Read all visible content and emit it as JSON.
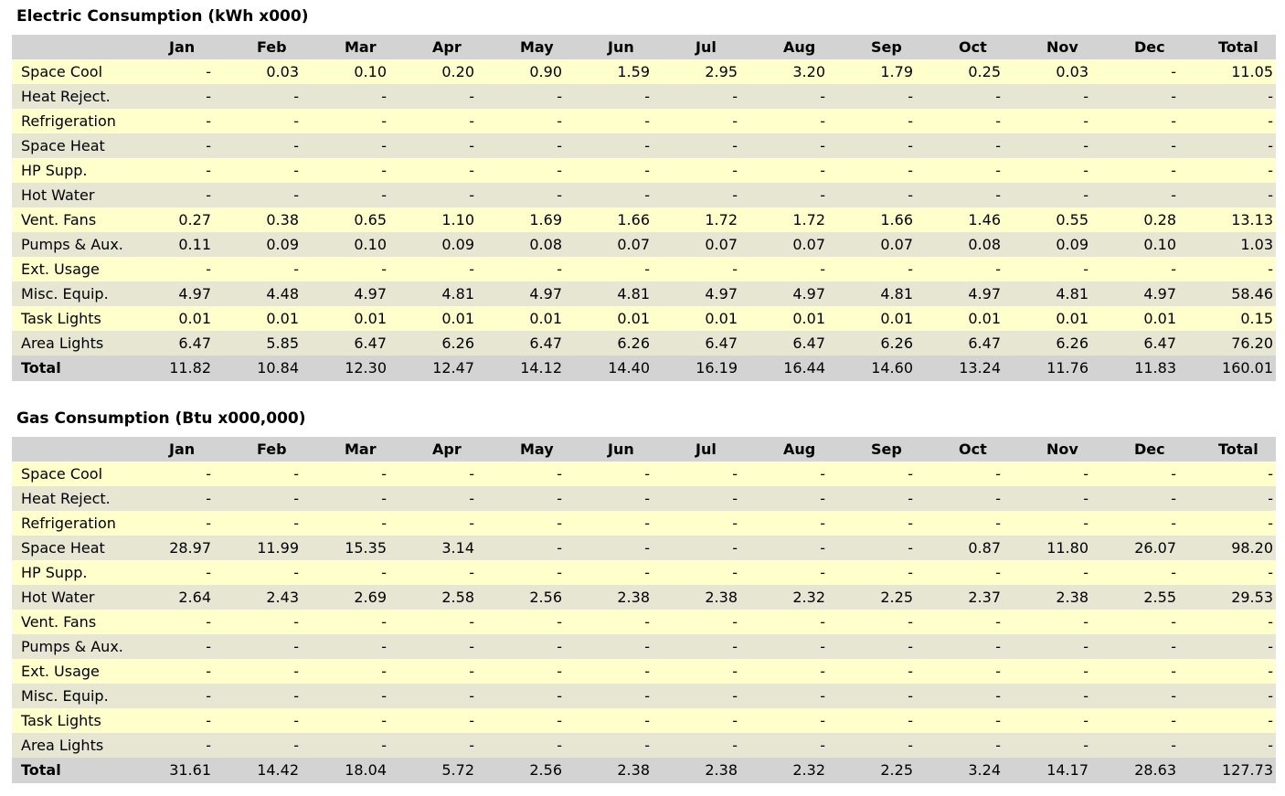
{
  "months": [
    "Jan",
    "Feb",
    "Mar",
    "Apr",
    "May",
    "Jun",
    "Jul",
    "Aug",
    "Sep",
    "Oct",
    "Nov",
    "Dec",
    "Total"
  ],
  "row_labels": [
    "Space Cool",
    "Heat Reject.",
    "Refrigeration",
    "Space Heat",
    "HP Supp.",
    "Hot Water",
    "Vent. Fans",
    "Pumps & Aux.",
    "Ext. Usage",
    "Misc. Equip.",
    "Task Lights",
    "Area Lights"
  ],
  "total_label": "Total",
  "electric": {
    "title": "Electric Consumption (kWh x000)",
    "rows": [
      [
        "-",
        "0.03",
        "0.10",
        "0.20",
        "0.90",
        "1.59",
        "2.95",
        "3.20",
        "1.79",
        "0.25",
        "0.03",
        "-",
        "11.05"
      ],
      [
        "-",
        "-",
        "-",
        "-",
        "-",
        "-",
        "-",
        "-",
        "-",
        "-",
        "-",
        "-",
        "-"
      ],
      [
        "-",
        "-",
        "-",
        "-",
        "-",
        "-",
        "-",
        "-",
        "-",
        "-",
        "-",
        "-",
        "-"
      ],
      [
        "-",
        "-",
        "-",
        "-",
        "-",
        "-",
        "-",
        "-",
        "-",
        "-",
        "-",
        "-",
        "-"
      ],
      [
        "-",
        "-",
        "-",
        "-",
        "-",
        "-",
        "-",
        "-",
        "-",
        "-",
        "-",
        "-",
        "-"
      ],
      [
        "-",
        "-",
        "-",
        "-",
        "-",
        "-",
        "-",
        "-",
        "-",
        "-",
        "-",
        "-",
        "-"
      ],
      [
        "0.27",
        "0.38",
        "0.65",
        "1.10",
        "1.69",
        "1.66",
        "1.72",
        "1.72",
        "1.66",
        "1.46",
        "0.55",
        "0.28",
        "13.13"
      ],
      [
        "0.11",
        "0.09",
        "0.10",
        "0.09",
        "0.08",
        "0.07",
        "0.07",
        "0.07",
        "0.07",
        "0.08",
        "0.09",
        "0.10",
        "1.03"
      ],
      [
        "-",
        "-",
        "-",
        "-",
        "-",
        "-",
        "-",
        "-",
        "-",
        "-",
        "-",
        "-",
        "-"
      ],
      [
        "4.97",
        "4.48",
        "4.97",
        "4.81",
        "4.97",
        "4.81",
        "4.97",
        "4.97",
        "4.81",
        "4.97",
        "4.81",
        "4.97",
        "58.46"
      ],
      [
        "0.01",
        "0.01",
        "0.01",
        "0.01",
        "0.01",
        "0.01",
        "0.01",
        "0.01",
        "0.01",
        "0.01",
        "0.01",
        "0.01",
        "0.15"
      ],
      [
        "6.47",
        "5.85",
        "6.47",
        "6.26",
        "6.47",
        "6.26",
        "6.47",
        "6.47",
        "6.26",
        "6.47",
        "6.26",
        "6.47",
        "76.20"
      ]
    ],
    "totals": [
      "11.82",
      "10.84",
      "12.30",
      "12.47",
      "14.12",
      "14.40",
      "16.19",
      "16.44",
      "14.60",
      "13.24",
      "11.76",
      "11.83",
      "160.01"
    ]
  },
  "gas": {
    "title": "Gas Consumption (Btu x000,000)",
    "rows": [
      [
        "-",
        "-",
        "-",
        "-",
        "-",
        "-",
        "-",
        "-",
        "-",
        "-",
        "-",
        "-",
        "-"
      ],
      [
        "-",
        "-",
        "-",
        "-",
        "-",
        "-",
        "-",
        "-",
        "-",
        "-",
        "-",
        "-",
        "-"
      ],
      [
        "-",
        "-",
        "-",
        "-",
        "-",
        "-",
        "-",
        "-",
        "-",
        "-",
        "-",
        "-",
        "-"
      ],
      [
        "28.97",
        "11.99",
        "15.35",
        "3.14",
        "-",
        "-",
        "-",
        "-",
        "-",
        "0.87",
        "11.80",
        "26.07",
        "98.20"
      ],
      [
        "-",
        "-",
        "-",
        "-",
        "-",
        "-",
        "-",
        "-",
        "-",
        "-",
        "-",
        "-",
        "-"
      ],
      [
        "2.64",
        "2.43",
        "2.69",
        "2.58",
        "2.56",
        "2.38",
        "2.38",
        "2.32",
        "2.25",
        "2.37",
        "2.38",
        "2.55",
        "29.53"
      ],
      [
        "-",
        "-",
        "-",
        "-",
        "-",
        "-",
        "-",
        "-",
        "-",
        "-",
        "-",
        "-",
        "-"
      ],
      [
        "-",
        "-",
        "-",
        "-",
        "-",
        "-",
        "-",
        "-",
        "-",
        "-",
        "-",
        "-",
        "-"
      ],
      [
        "-",
        "-",
        "-",
        "-",
        "-",
        "-",
        "-",
        "-",
        "-",
        "-",
        "-",
        "-",
        "-"
      ],
      [
        "-",
        "-",
        "-",
        "-",
        "-",
        "-",
        "-",
        "-",
        "-",
        "-",
        "-",
        "-",
        "-"
      ],
      [
        "-",
        "-",
        "-",
        "-",
        "-",
        "-",
        "-",
        "-",
        "-",
        "-",
        "-",
        "-",
        "-"
      ],
      [
        "-",
        "-",
        "-",
        "-",
        "-",
        "-",
        "-",
        "-",
        "-",
        "-",
        "-",
        "-",
        "-"
      ]
    ],
    "totals": [
      "31.61",
      "14.42",
      "18.04",
      "5.72",
      "2.56",
      "2.38",
      "2.38",
      "2.32",
      "2.25",
      "3.24",
      "14.17",
      "28.63",
      "127.73"
    ]
  },
  "colors": {
    "header_bg": "#d3d3d3",
    "row_light": "#ffffcc",
    "row_dark": "#e6e6d2",
    "total_bg": "#d3d3d3"
  }
}
